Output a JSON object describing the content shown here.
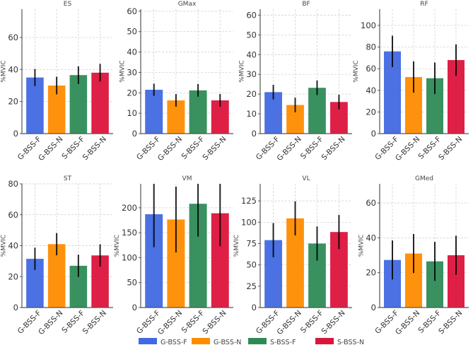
{
  "chart_data": [
    {
      "type": "bar",
      "title": "ES",
      "ylabel": "%MVIC",
      "categories": [
        "G-BSS-F",
        "G-BSS-N",
        "S-BSS-F",
        "S-BSS-N"
      ],
      "values": [
        35,
        30,
        36.5,
        38
      ],
      "errors": [
        5.3,
        5.5,
        5.5,
        5.5
      ],
      "ylim": [
        0,
        77.6
      ],
      "yticks": [
        0,
        20,
        40,
        60
      ],
      "grid": true
    },
    {
      "type": "bar",
      "title": "GMax",
      "ylabel": "%MVIC",
      "categories": [
        "G-BSS-F",
        "G-BSS-N",
        "S-BSS-F",
        "S-BSS-N"
      ],
      "values": [
        21.5,
        16.3,
        21.2,
        16.3
      ],
      "errors": [
        3,
        3.1,
        3.1,
        3.1
      ],
      "ylim": [
        0,
        61
      ],
      "yticks": [
        0,
        10,
        20,
        30,
        40,
        50,
        60
      ],
      "grid": true
    },
    {
      "type": "bar",
      "title": "BF",
      "ylabel": "%MVIC",
      "categories": [
        "G-BSS-F",
        "G-BSS-N",
        "S-BSS-F",
        "S-BSS-N"
      ],
      "values": [
        21,
        14.5,
        23.2,
        16
      ],
      "errors": [
        3.7,
        3.7,
        3.7,
        3.7
      ],
      "ylim": [
        0,
        63
      ],
      "yticks": [
        0,
        10,
        20,
        30,
        40,
        50,
        60
      ],
      "grid": true
    },
    {
      "type": "bar",
      "title": "RF",
      "ylabel": "%MVIC",
      "categories": [
        "G-BSS-F",
        "G-BSS-N",
        "S-BSS-F",
        "S-BSS-N"
      ],
      "values": [
        76,
        52.3,
        51.2,
        68
      ],
      "errors": [
        14.5,
        14.5,
        14.5,
        14.5
      ],
      "ylim": [
        0,
        115
      ],
      "yticks": [
        0,
        20,
        40,
        60,
        80,
        100
      ],
      "grid": true
    },
    {
      "type": "bar",
      "title": "ST",
      "ylabel": "%MVIC",
      "categories": [
        "G-BSS-F",
        "G-BSS-N",
        "S-BSS-F",
        "S-BSS-N"
      ],
      "values": [
        31.5,
        41,
        27,
        33.7
      ],
      "errors": [
        7.2,
        7.2,
        7.2,
        7.2
      ],
      "ylim": [
        0,
        80
      ],
      "yticks": [
        0,
        20,
        40,
        60,
        80
      ],
      "grid": true
    },
    {
      "type": "bar",
      "title": "VM",
      "ylabel": "%MVIC",
      "categories": [
        "G-BSS-F",
        "G-BSS-N",
        "S-BSS-F",
        "S-BSS-N"
      ],
      "values": [
        187,
        176.5,
        208,
        189
      ],
      "errors": [
        66,
        66,
        66,
        66
      ],
      "ylim": [
        0,
        248
      ],
      "yticks": [
        0,
        50,
        100,
        150,
        200
      ],
      "grid": true
    },
    {
      "type": "bar",
      "title": "VL",
      "ylabel": "%MVIC",
      "categories": [
        "G-BSS-F",
        "G-BSS-N",
        "S-BSS-F",
        "S-BSS-N"
      ],
      "values": [
        79,
        104.5,
        75,
        88.5
      ],
      "errors": [
        20,
        20,
        20,
        20
      ],
      "ylim": [
        0,
        145
      ],
      "yticks": [
        0,
        25,
        50,
        75,
        100,
        125
      ],
      "grid": true
    },
    {
      "type": "bar",
      "title": "GMed",
      "ylabel": "%MVIC",
      "categories": [
        "G-BSS-F",
        "G-BSS-N",
        "S-BSS-F",
        "S-BSS-N"
      ],
      "values": [
        27.3,
        31,
        26.5,
        30
      ],
      "errors": [
        11.2,
        11.2,
        11.2,
        11.2
      ],
      "ylim": [
        0,
        71
      ],
      "yticks": [
        0,
        20,
        40,
        60
      ],
      "grid": true
    }
  ],
  "legend": {
    "placement": "bottom-center",
    "entries": [
      {
        "label": "G-BSS-F",
        "color": "#4169e1"
      },
      {
        "label": "G-BSS-N",
        "color": "#ff8c00"
      },
      {
        "label": "S-BSS-F",
        "color": "#2e8b57"
      },
      {
        "label": "S-BSS-N",
        "color": "#dc143c"
      }
    ]
  }
}
